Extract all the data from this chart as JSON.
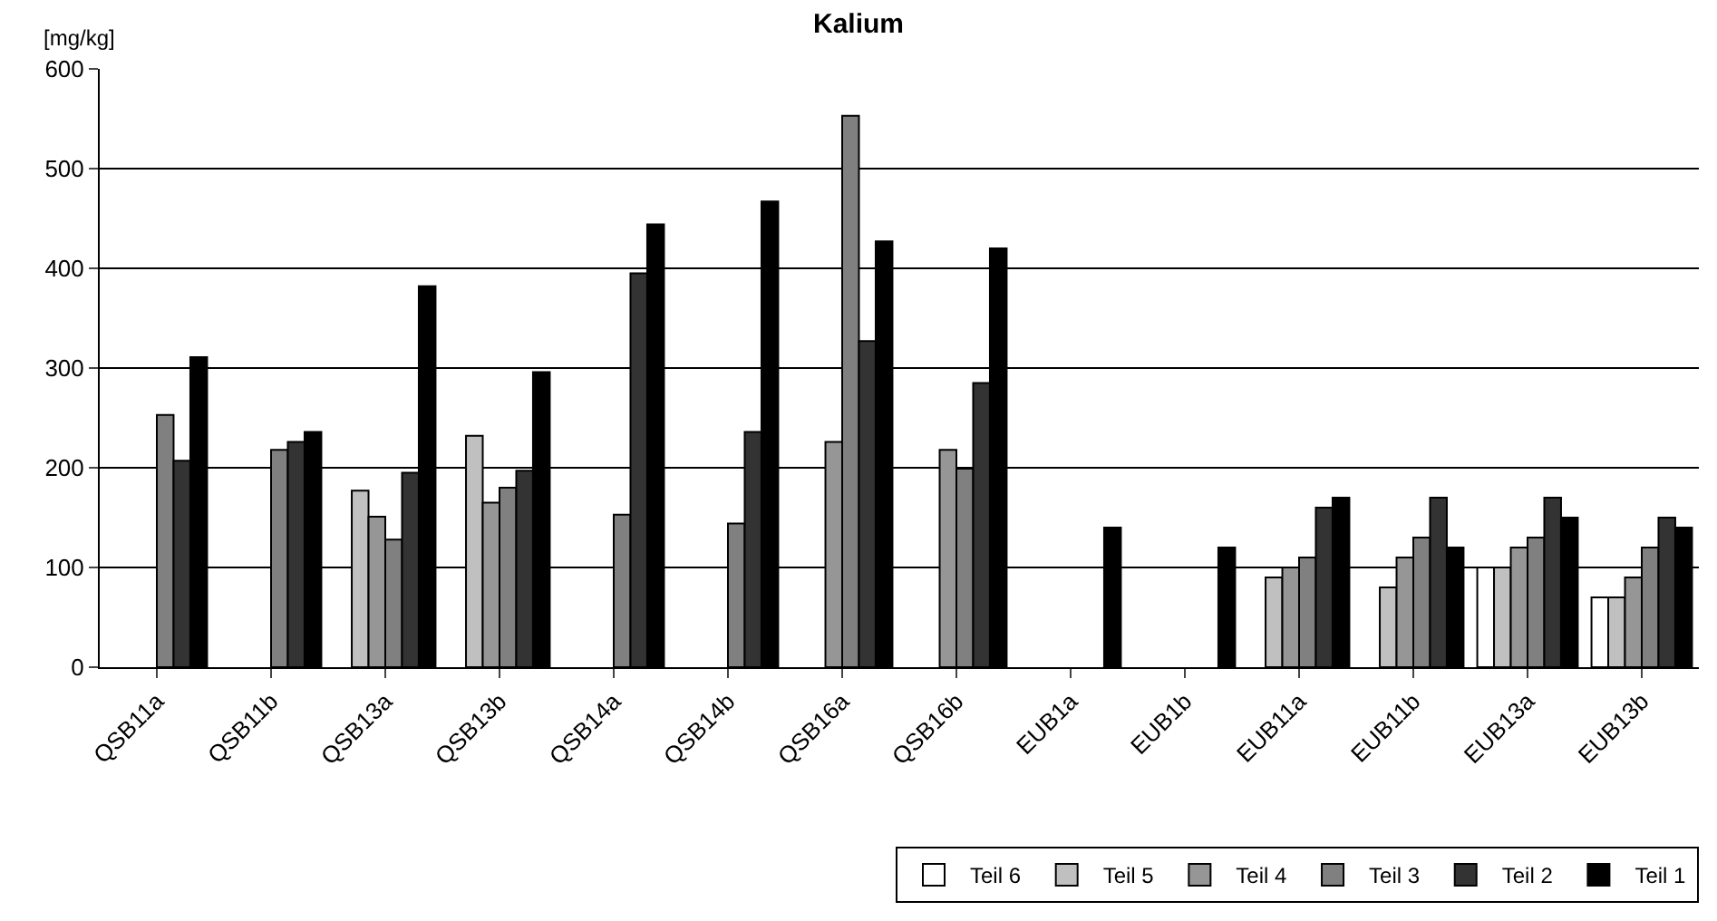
{
  "chart_data": {
    "type": "bar",
    "title": "Kalium",
    "ylabel": "[mg/kg]",
    "categories": [
      "QSB11a",
      "QSB11b",
      "QSB13a",
      "QSB13b",
      "QSB14a",
      "QSB14b",
      "QSB16a",
      "QSB16b",
      "EUB1a",
      "EUB1b",
      "EUB11a",
      "EUB11b",
      "EUB13a",
      "EUB13b"
    ],
    "series": [
      {
        "name": "Teil 6",
        "color": "#ffffff",
        "values": [
          null,
          null,
          null,
          null,
          null,
          null,
          null,
          null,
          null,
          null,
          null,
          null,
          100,
          70
        ]
      },
      {
        "name": "Teil 5",
        "color": "#c0c0c0",
        "values": [
          null,
          null,
          177,
          232,
          null,
          null,
          null,
          null,
          null,
          null,
          90,
          80,
          100,
          70
        ]
      },
      {
        "name": "Teil 4",
        "color": "#969696",
        "values": [
          null,
          null,
          151,
          165,
          null,
          null,
          226,
          218,
          null,
          null,
          100,
          110,
          120,
          90
        ]
      },
      {
        "name": "Teil 3",
        "color": "#808080",
        "values": [
          253,
          218,
          128,
          180,
          153,
          144,
          553,
          199,
          null,
          null,
          110,
          130,
          130,
          120
        ]
      },
      {
        "name": "Teil 2",
        "color": "#333333",
        "values": [
          207,
          226,
          195,
          197,
          395,
          236,
          327,
          285,
          null,
          null,
          160,
          170,
          170,
          150
        ]
      },
      {
        "name": "Teil 1",
        "color": "#000000",
        "values": [
          311,
          236,
          382,
          296,
          444,
          467,
          427,
          420,
          140,
          120,
          170,
          120,
          150,
          140
        ]
      }
    ],
    "ylim": [
      0,
      600
    ],
    "yticks": [
      0,
      100,
      200,
      300,
      400,
      500,
      600
    ],
    "grid": "y",
    "legend": "bottom right"
  }
}
